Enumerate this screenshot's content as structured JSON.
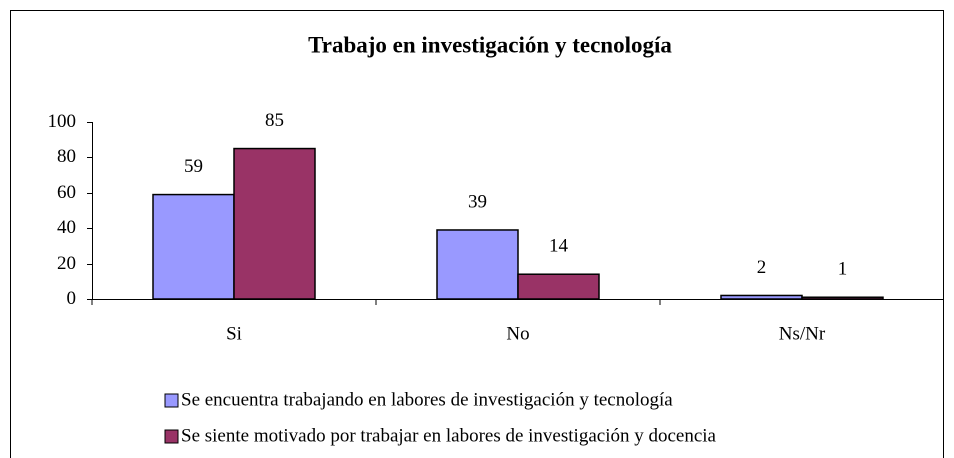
{
  "chart_data": {
    "type": "bar",
    "title": "Trabajo en investigación y tecnología",
    "categories": [
      "Si",
      "No",
      "Ns/Nr"
    ],
    "series": [
      {
        "name": "Se encuentra trabajando en labores de investigación y tecnología",
        "color": "#9999ff",
        "values": [
          59,
          39,
          2
        ]
      },
      {
        "name": "Se siente motivado por trabajar en labores de investigación y docencia",
        "color": "#993366",
        "values": [
          85,
          14,
          1
        ]
      }
    ],
    "ylim": [
      0,
      100
    ],
    "yticks": [
      0,
      20,
      40,
      60,
      80,
      100
    ],
    "legend": "bottom"
  }
}
